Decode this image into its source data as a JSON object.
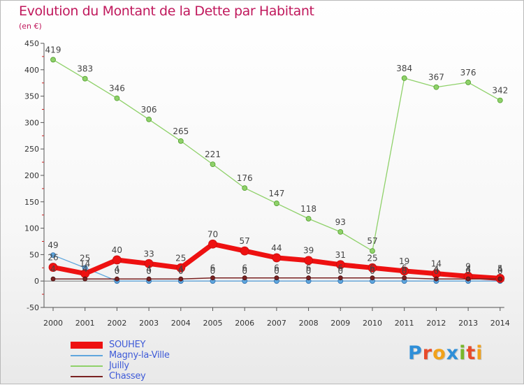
{
  "title": "Evolution du Montant de la Dette par Habitant",
  "unit_label": "(en €)",
  "brand": {
    "name": "Proxiti",
    "letter_colors": [
      "#2f8fd8",
      "#e84b2a",
      "#f1a21b",
      "#2f8fd8",
      "#79b72a",
      "#e84b2a",
      "#f1a21b"
    ]
  },
  "chart_data": {
    "type": "line",
    "x": [
      "2000",
      "2001",
      "2002",
      "2003",
      "2004",
      "2005",
      "2006",
      "2007",
      "2008",
      "2009",
      "2010",
      "2011",
      "2012",
      "2013",
      "2014"
    ],
    "y_ticks": [
      "-50",
      "0",
      "50",
      "100",
      "150",
      "200",
      "250",
      "300",
      "350",
      "400",
      "450"
    ],
    "ylim": [
      -50,
      450
    ],
    "grid": false,
    "legend_position": "bottom-left",
    "series": [
      {
        "name": "SOUHEY",
        "color": "#ee1111",
        "values": [
          26,
          14,
          40,
          33,
          25,
          70,
          57,
          44,
          39,
          31,
          25,
          19,
          14,
          9,
          5
        ],
        "labels": [
          "26",
          "14",
          "40",
          "33",
          "25",
          "70",
          "57",
          "44",
          "39",
          "31",
          "25",
          "19",
          "14",
          "9",
          "5"
        ]
      },
      {
        "name": "Magny-la-Ville",
        "color": "#5fa6dd",
        "values": [
          49,
          25,
          0,
          0,
          0,
          0,
          0,
          0,
          0,
          0,
          0,
          0,
          0,
          0,
          0
        ],
        "labels": [
          "49",
          "25",
          "0",
          "0",
          "0",
          "0",
          "0",
          "0",
          "0",
          "0",
          "0",
          "0",
          "0",
          "0",
          "0"
        ]
      },
      {
        "name": "Juilly",
        "color": "#8fd16a",
        "values": [
          419,
          383,
          346,
          306,
          265,
          221,
          176,
          147,
          118,
          93,
          57,
          384,
          367,
          376,
          342
        ],
        "labels": [
          "419",
          "383",
          "346",
          "306",
          "265",
          "221",
          "176",
          "147",
          "118",
          "93",
          "57",
          "384",
          "367",
          "376",
          "342"
        ]
      },
      {
        "name": "Chassey",
        "color": "#7a2222",
        "values": [
          4,
          4,
          4,
          4,
          4,
          6,
          6,
          6,
          6,
          6,
          6,
          6,
          4,
          4,
          4
        ],
        "labels": [
          "4",
          "4",
          "4",
          "4",
          "4",
          "6",
          "6",
          "6",
          "6",
          "6",
          "6",
          "6",
          "4",
          "4",
          "4"
        ]
      }
    ]
  }
}
